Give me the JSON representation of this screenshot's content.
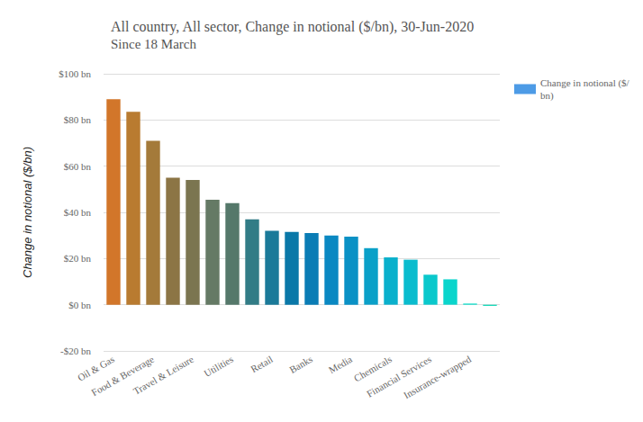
{
  "chart_data": {
    "type": "bar",
    "title": "All country, All sector, Change in notional ($/bn), 30-Jun-2020",
    "subtitle": "Since 18 March",
    "y_label": "Change in notional ($/bn)",
    "categories": [
      "Oil & Gas",
      null,
      "Food & Beverage",
      null,
      "Travel & Leisure",
      null,
      "Utilities",
      null,
      "Retail",
      null,
      "Banks",
      null,
      "Media",
      null,
      "Chemicals",
      null,
      "Financial Services",
      null,
      "Insurance-wrapped",
      null
    ],
    "series": [
      {
        "name": "Change in notional ($/bn)",
        "color": "#4d9be6",
        "values": [
          89,
          83.5,
          71,
          55,
          54,
          45.5,
          44,
          37,
          32,
          31.5,
          31,
          30,
          29.5,
          24.5,
          20.5,
          19.5,
          13,
          11,
          0.5,
          -0.5
        ],
        "colors": [
          "#d2762a",
          "#b97b30",
          "#a47a3a",
          "#8c7545",
          "#7b7550",
          "#657a65",
          "#55786a",
          "#327c86",
          "#1b7a99",
          "#0a78a8",
          "#0a7cb5",
          "#0a88c2",
          "#0a91c5",
          "#0aa0c8",
          "#0ab0cc",
          "#0abcce",
          "#0ac8cc",
          "#0ad5cc",
          "#0adcc8",
          "#10d9b8"
        ]
      }
    ],
    "ylim": [
      -20,
      100
    ],
    "yticks": [
      {
        "value": -20,
        "label": "-$20 bn"
      },
      {
        "value": 0,
        "label": "$0 bn"
      },
      {
        "value": 20,
        "label": "$20 bn"
      },
      {
        "value": 40,
        "label": "$40 bn"
      },
      {
        "value": 60,
        "label": "$60 bn"
      },
      {
        "value": 80,
        "label": "$80 bn"
      },
      {
        "value": 100,
        "label": "$100 bn"
      }
    ],
    "grid": true,
    "legend": "top-right"
  }
}
